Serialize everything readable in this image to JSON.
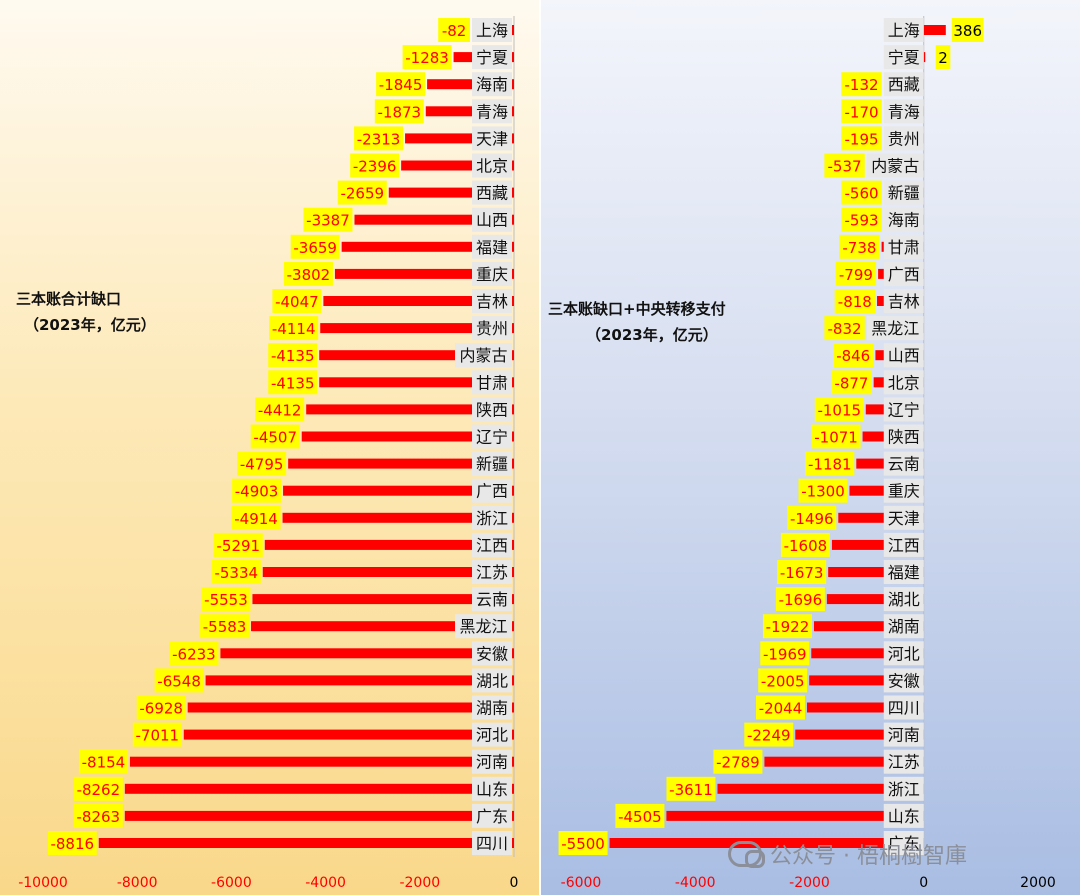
{
  "chart_data": [
    {
      "type": "bar",
      "orientation": "horizontal",
      "title": "三本账合计缺口",
      "subtitle": "（2023年，亿元）",
      "categories": [
        "上海",
        "宁夏",
        "海南",
        "青海",
        "天津",
        "北京",
        "西藏",
        "山西",
        "福建",
        "重庆",
        "吉林",
        "贵州",
        "内蒙古",
        "甘肃",
        "陕西",
        "辽宁",
        "新疆",
        "广西",
        "浙江",
        "江西",
        "江苏",
        "云南",
        "黑龙江",
        "安徽",
        "湖北",
        "湖南",
        "河北",
        "河南",
        "山东",
        "广东",
        "四川"
      ],
      "values": [
        -82,
        -1283,
        -1845,
        -1873,
        -2313,
        -2396,
        -2659,
        -3387,
        -3659,
        -3802,
        -4047,
        -4114,
        -4135,
        -4135,
        -4412,
        -4507,
        -4795,
        -4903,
        -4914,
        -5291,
        -5334,
        -5553,
        -5583,
        -6233,
        -6548,
        -6928,
        -7011,
        -8154,
        -8262,
        -8263,
        -8816
      ],
      "value_labels": [
        "-82",
        "-1283",
        "-1845",
        "-1873",
        "-2313",
        "-2396",
        "-2659",
        "-3387",
        "-3659",
        "-3802",
        "-4047",
        "-4114",
        "-4135",
        "-4135",
        "-4412",
        "-4507",
        "-4795",
        "-4903",
        "-4914",
        "-5291",
        "-5334",
        "-5553",
        "-5583",
        "-6233",
        "-6548",
        "-6928",
        "-7011",
        "-8154",
        "-8262",
        "-8263",
        "-8816"
      ],
      "xlim": [
        -10000,
        0
      ],
      "ticks": [
        -10000,
        -8000,
        -6000,
        -4000,
        -2000,
        0
      ],
      "tick_labels": [
        "-10000",
        "-8000",
        "-6000",
        "-4000",
        "-2000",
        "0"
      ],
      "grid": false,
      "colors": {
        "bar": "#ff0000",
        "label_bg": "#ffff00",
        "label_text": "#ff0000",
        "category_bg": "#e8e8e8",
        "tick_text": "#ff0000"
      }
    },
    {
      "type": "bar",
      "orientation": "horizontal",
      "title": "三本账缺口+中央转移支付",
      "subtitle": "（2023年，亿元）",
      "categories": [
        "上海",
        "宁夏",
        "西藏",
        "青海",
        "贵州",
        "内蒙古",
        "新疆",
        "海南",
        "甘肃",
        "广西",
        "吉林",
        "黑龙江",
        "山西",
        "北京",
        "辽宁",
        "陕西",
        "云南",
        "重庆",
        "天津",
        "江西",
        "福建",
        "湖北",
        "湖南",
        "河北",
        "安徽",
        "四川",
        "河南",
        "江苏",
        "浙江",
        "山东",
        "广东"
      ],
      "values": [
        386,
        2,
        -132,
        -170,
        -195,
        -537,
        -560,
        -593,
        -738,
        -799,
        -818,
        -832,
        -846,
        -877,
        -1015,
        -1071,
        -1181,
        -1300,
        -1496,
        -1608,
        -1673,
        -1696,
        -1922,
        -1969,
        -2005,
        -2044,
        -2249,
        -2789,
        -3611,
        -4505,
        -5500
      ],
      "value_labels": [
        "386",
        "2",
        "-132",
        "-170",
        "-195",
        "-537",
        "-560",
        "-593",
        "-738",
        "-799",
        "-818",
        "-832",
        "-846",
        "-877",
        "-1015",
        "-1071",
        "-1181",
        "-1300",
        "-1496",
        "-1608",
        "-1673",
        "-1696",
        "-1922",
        "-1969",
        "-2005",
        "-2044",
        "-2249",
        "-2789",
        "-3611",
        "-4505",
        "-5500"
      ],
      "xlim": [
        -6000,
        2000
      ],
      "ticks": [
        -6000,
        -4000,
        -2000,
        0,
        2000
      ],
      "tick_labels": [
        "-6000",
        "-4000",
        "-2000",
        "0",
        "2000"
      ],
      "grid": false,
      "colors": {
        "bar": "#ff0000",
        "label_bg": "#ffff00",
        "label_text": "#ff0000",
        "positive_label_text": "#000000",
        "category_bg": "#e8e8e8",
        "tick_text": "#ff0000",
        "positive_tick_text": "#000000"
      }
    }
  ],
  "watermark": {
    "text": "公众号 · 梧桐樹智庫",
    "icon": "wechat-icon"
  }
}
